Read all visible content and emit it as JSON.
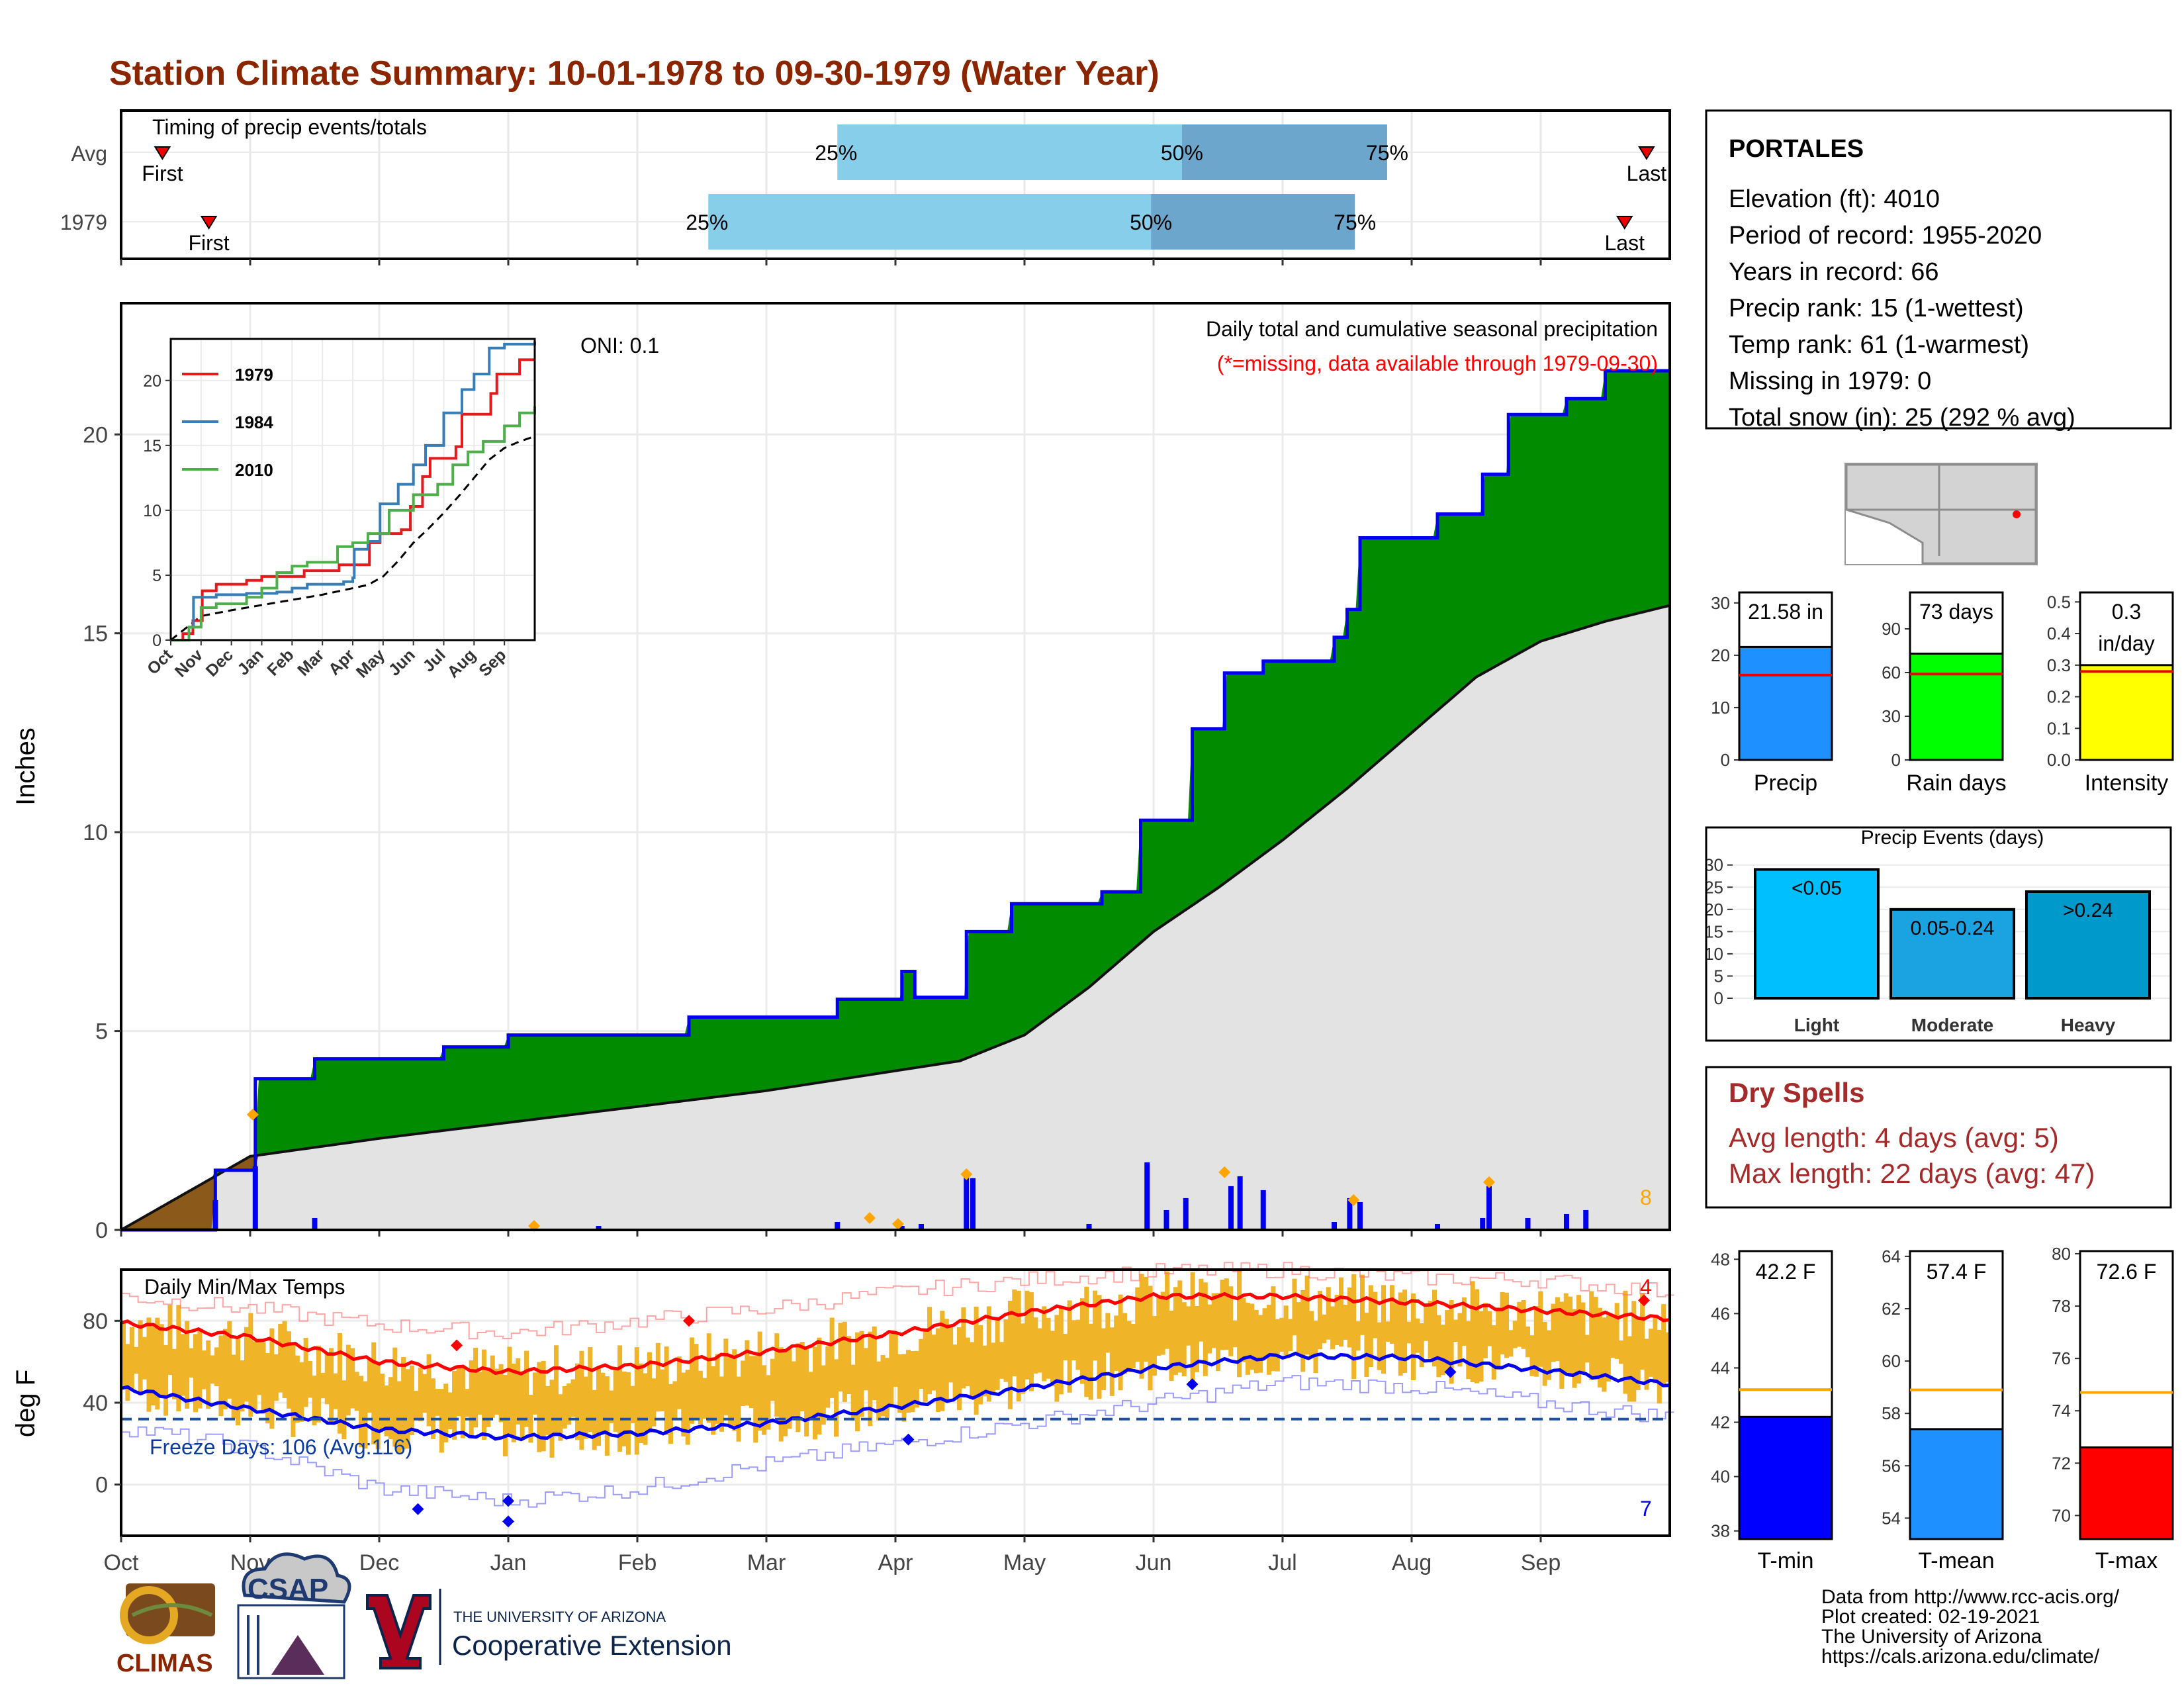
{
  "title": "Station Climate Summary: 10-01-1978 to 09-30-1979 (Water Year)",
  "colors": {
    "title": "#8B2500",
    "green": "#008B00",
    "blue": "#0000EE",
    "brown": "#8B5A1A",
    "grey_area": "#E3E3E3",
    "light_blue": "#87CEEB",
    "mid_blue": "#6CA6CD",
    "orange": "#FFA500",
    "red": "#FF0000",
    "gold": "#F0B429"
  },
  "timing": {
    "title": "Timing of precip events/totals",
    "rows": [
      {
        "label": "Avg",
        "first_label": "First",
        "last_label": "Last",
        "first_month": 0.32,
        "p25_month": 5.55,
        "p50_month": 8.22,
        "p75_month": 9.81,
        "last_month": 11.82,
        "p25_label": "25%",
        "p50_label": "50%",
        "p75_label": "75%"
      },
      {
        "label": "1979",
        "first_label": "First",
        "last_label": "Last",
        "first_month": 0.68,
        "p25_month": 4.55,
        "p50_month": 7.98,
        "p75_month": 9.56,
        "last_month": 11.65,
        "p25_label": "25%",
        "p50_label": "50%",
        "p75_label": "75%"
      }
    ]
  },
  "precip_chart": {
    "ylabel": "Inches",
    "y_ticks": [
      0,
      5,
      10,
      15,
      20
    ],
    "ylim": [
      0,
      23.3
    ],
    "x_ticks": [
      "Oct",
      "Nov",
      "Dec",
      "Jan",
      "Feb",
      "Mar",
      "Apr",
      "May",
      "Jun",
      "Jul",
      "Aug",
      "Sep"
    ],
    "oni": "ONI: 0.1",
    "subtitle": "Daily total and cumulative seasonal precipitation",
    "missing_note": "(*=missing, data available through 1979-09-30)",
    "count_label": "8",
    "cumulative_1979_steps": [
      [
        0,
        0
      ],
      [
        0.73,
        1.5
      ],
      [
        1.04,
        3.8
      ],
      [
        1.5,
        4.3
      ],
      [
        2.5,
        4.6
      ],
      [
        3.0,
        4.9
      ],
      [
        4.4,
        5.35
      ],
      [
        5.55,
        5.8
      ],
      [
        6.05,
        6.5
      ],
      [
        6.15,
        5.85
      ],
      [
        6.55,
        7.5
      ],
      [
        6.9,
        8.2
      ],
      [
        7.3,
        8.2
      ],
      [
        7.6,
        8.5
      ],
      [
        7.9,
        10.3
      ],
      [
        8.3,
        12.6
      ],
      [
        8.55,
        14.0
      ],
      [
        8.85,
        14.3
      ],
      [
        9.4,
        14.9
      ],
      [
        9.5,
        15.6
      ],
      [
        9.6,
        17.4
      ],
      [
        10.2,
        18.0
      ],
      [
        10.55,
        19.0
      ],
      [
        10.75,
        20.5
      ],
      [
        11.2,
        20.9
      ],
      [
        11.5,
        21.6
      ],
      [
        12,
        21.6
      ]
    ],
    "average_cumulative": [
      [
        0,
        0
      ],
      [
        1.0,
        1.85
      ],
      [
        2.0,
        2.3
      ],
      [
        3.0,
        2.7
      ],
      [
        4.0,
        3.1
      ],
      [
        5.0,
        3.5
      ],
      [
        6.0,
        4.0
      ],
      [
        6.5,
        4.25
      ],
      [
        7.0,
        4.9
      ],
      [
        7.5,
        6.1
      ],
      [
        8.0,
        7.5
      ],
      [
        8.5,
        8.6
      ],
      [
        9.0,
        9.8
      ],
      [
        9.5,
        11.1
      ],
      [
        10.0,
        12.5
      ],
      [
        10.5,
        13.9
      ],
      [
        11.0,
        14.8
      ],
      [
        11.5,
        15.3
      ],
      [
        12,
        15.7
      ]
    ],
    "daily_bars": [
      [
        0.73,
        0.75
      ],
      [
        1.04,
        1.6
      ],
      [
        1.5,
        0.3
      ],
      [
        3.7,
        0.1
      ],
      [
        5.55,
        0.2
      ],
      [
        6.05,
        0.1
      ],
      [
        6.2,
        0.15
      ],
      [
        6.55,
        1.4
      ],
      [
        6.6,
        1.3
      ],
      [
        7.5,
        0.15
      ],
      [
        7.95,
        1.7
      ],
      [
        8.1,
        0.5
      ],
      [
        8.25,
        0.8
      ],
      [
        8.6,
        1.1
      ],
      [
        8.67,
        1.35
      ],
      [
        8.85,
        1.0
      ],
      [
        9.4,
        0.2
      ],
      [
        9.52,
        0.8
      ],
      [
        9.6,
        0.7
      ],
      [
        10.2,
        0.15
      ],
      [
        10.55,
        0.3
      ],
      [
        10.6,
        1.1
      ],
      [
        10.9,
        0.3
      ],
      [
        11.2,
        0.4
      ],
      [
        11.35,
        0.5
      ]
    ],
    "markers": [
      [
        1.02,
        2.9
      ],
      [
        5.8,
        0.3
      ],
      [
        6.02,
        0.15
      ],
      [
        6.55,
        1.4
      ],
      [
        8.55,
        1.45
      ],
      [
        9.55,
        0.75
      ],
      [
        10.6,
        1.2
      ],
      [
        3.2,
        0.1
      ]
    ]
  },
  "inset": {
    "y_ticks": [
      0,
      5,
      10,
      15,
      20
    ],
    "x_ticks": [
      "Oct",
      "Nov",
      "Dec",
      "Jan",
      "Feb",
      "Mar",
      "Apr",
      "May",
      "Jun",
      "Jul",
      "Aug",
      "Sep"
    ],
    "series": [
      {
        "name": "1979",
        "color": "#E41A1C",
        "values": [
          [
            0,
            0
          ],
          [
            0.4,
            0.5
          ],
          [
            0.73,
            1.5
          ],
          [
            1.04,
            3.8
          ],
          [
            1.5,
            4.3
          ],
          [
            2.5,
            4.6
          ],
          [
            3.0,
            4.9
          ],
          [
            4.4,
            5.35
          ],
          [
            5.55,
            5.8
          ],
          [
            6.55,
            7.5
          ],
          [
            6.9,
            8.2
          ],
          [
            7.6,
            8.5
          ],
          [
            7.9,
            10.3
          ],
          [
            8.3,
            12.6
          ],
          [
            8.55,
            14.0
          ],
          [
            9.4,
            14.9
          ],
          [
            9.6,
            17.4
          ],
          [
            10.55,
            19.0
          ],
          [
            10.75,
            20.5
          ],
          [
            11.5,
            21.6
          ],
          [
            12,
            21.6
          ]
        ]
      },
      {
        "name": "1984",
        "color": "#377EB8",
        "values": [
          [
            0,
            0
          ],
          [
            0.6,
            1.0
          ],
          [
            0.75,
            3.3
          ],
          [
            1.5,
            3.5
          ],
          [
            2.5,
            3.6
          ],
          [
            3.5,
            3.7
          ],
          [
            4.0,
            4.0
          ],
          [
            4.5,
            4.3
          ],
          [
            5.7,
            4.5
          ],
          [
            6.0,
            4.8
          ],
          [
            6.05,
            7.0
          ],
          [
            6.5,
            7.6
          ],
          [
            6.9,
            10.5
          ],
          [
            7.5,
            12.0
          ],
          [
            8.0,
            13.5
          ],
          [
            8.4,
            15.0
          ],
          [
            9.0,
            17.5
          ],
          [
            9.6,
            19.3
          ],
          [
            10.0,
            20.5
          ],
          [
            10.5,
            22.5
          ],
          [
            11.0,
            22.8
          ],
          [
            12,
            23.0
          ]
        ]
      },
      {
        "name": "2010",
        "color": "#4DAF4A",
        "values": [
          [
            0,
            0
          ],
          [
            0.6,
            1.0
          ],
          [
            1.0,
            2.5
          ],
          [
            1.5,
            2.8
          ],
          [
            2.5,
            3.3
          ],
          [
            3.0,
            4.0
          ],
          [
            3.5,
            5.2
          ],
          [
            4.0,
            5.7
          ],
          [
            4.5,
            6.0
          ],
          [
            5.5,
            7.2
          ],
          [
            6.0,
            7.5
          ],
          [
            6.5,
            8.2
          ],
          [
            7.2,
            10.0
          ],
          [
            8.0,
            11.2
          ],
          [
            8.8,
            12.0
          ],
          [
            9.3,
            13.5
          ],
          [
            9.8,
            14.5
          ],
          [
            10.3,
            15.3
          ],
          [
            11.0,
            16.5
          ],
          [
            11.5,
            17.5
          ],
          [
            12,
            18.0
          ]
        ]
      }
    ],
    "average": [
      [
        0,
        0
      ],
      [
        1.0,
        1.85
      ],
      [
        2.0,
        2.3
      ],
      [
        3.0,
        2.7
      ],
      [
        4.0,
        3.1
      ],
      [
        5.0,
        3.5
      ],
      [
        6.0,
        4.0
      ],
      [
        6.5,
        4.25
      ],
      [
        7.0,
        4.9
      ],
      [
        7.5,
        6.1
      ],
      [
        8.0,
        7.5
      ],
      [
        8.5,
        8.6
      ],
      [
        9.0,
        9.8
      ],
      [
        9.5,
        11.1
      ],
      [
        10.0,
        12.5
      ],
      [
        10.5,
        13.9
      ],
      [
        11.0,
        14.8
      ],
      [
        11.5,
        15.3
      ],
      [
        12,
        15.7
      ]
    ]
  },
  "temp_chart": {
    "ylabel": "deg F",
    "title": "Daily Min/Max Temps",
    "y_ticks": [
      0,
      40,
      80
    ],
    "ylim": [
      -25,
      105
    ],
    "freeze_label": "Freeze Days: 106 (Avg:116)",
    "freeze_line_f": 32,
    "max_count_label": "4",
    "min_count_label": "7",
    "avg_max": [
      [
        0,
        79
      ],
      [
        1,
        72
      ],
      [
        2,
        60
      ],
      [
        3,
        55
      ],
      [
        4,
        58
      ],
      [
        5,
        65
      ],
      [
        6,
        74
      ],
      [
        7,
        84
      ],
      [
        8,
        92
      ],
      [
        9,
        92
      ],
      [
        10,
        89
      ],
      [
        11,
        85
      ],
      [
        12,
        81
      ]
    ],
    "avg_min": [
      [
        0,
        47
      ],
      [
        1,
        37
      ],
      [
        2,
        27
      ],
      [
        3,
        23
      ],
      [
        4,
        25
      ],
      [
        5,
        30
      ],
      [
        6,
        38
      ],
      [
        7,
        47
      ],
      [
        8,
        57
      ],
      [
        9,
        63
      ],
      [
        10,
        62
      ],
      [
        11,
        56
      ],
      [
        12,
        49
      ]
    ],
    "record_max": [
      [
        0,
        92
      ],
      [
        1,
        86
      ],
      [
        2,
        78
      ],
      [
        3,
        74
      ],
      [
        4,
        80
      ],
      [
        5,
        86
      ],
      [
        6,
        94
      ],
      [
        7,
        100
      ],
      [
        8,
        104
      ],
      [
        9,
        105
      ],
      [
        10,
        101
      ],
      [
        11,
        100
      ],
      [
        12,
        94
      ]
    ],
    "record_min": [
      [
        0,
        28
      ],
      [
        1,
        18
      ],
      [
        2,
        -2
      ],
      [
        3,
        -8
      ],
      [
        4,
        -2
      ],
      [
        5,
        10
      ],
      [
        6,
        20
      ],
      [
        7,
        30
      ],
      [
        8,
        40
      ],
      [
        9,
        50
      ],
      [
        10,
        48
      ],
      [
        11,
        40
      ],
      [
        12,
        33
      ]
    ],
    "red_markers": [
      [
        2.6,
        68
      ],
      [
        4.4,
        80
      ],
      [
        11.8,
        90
      ]
    ],
    "blue_markers": [
      [
        2.3,
        -12
      ],
      [
        3.0,
        -8
      ],
      [
        3.0,
        -18
      ],
      [
        6.1,
        22
      ],
      [
        8.3,
        49
      ],
      [
        10.3,
        55
      ]
    ]
  },
  "station": {
    "name": "PORTALES",
    "lines": [
      "Elevation (ft): 4010",
      "Period of record: 1955-2020",
      "Years in record: 66",
      "Precip rank: 15 (1-wettest)",
      "Temp rank: 61 (1-warmest)",
      "Missing in 1979: 0",
      "Total snow (in): 25 (292 % avg)"
    ]
  },
  "summary_bars": [
    {
      "label": "Precip",
      "value_label": "21.58 in",
      "value": 21.58,
      "avg": 16.2,
      "ymax": 32,
      "ticks": [
        0,
        10,
        20,
        30
      ],
      "color": "#1E90FF"
    },
    {
      "label": "Rain days",
      "value_label": "73 days",
      "value": 73,
      "avg": 59,
      "ymax": 115,
      "ticks": [
        0,
        30,
        60,
        90
      ],
      "color": "#00FF00"
    },
    {
      "label": "Intensity",
      "value_label": "0.3",
      "value_label2": "in/day",
      "value": 0.3,
      "avg": 0.28,
      "ymax": 0.53,
      "ticks": [
        "0.0",
        "0.1",
        "0.2",
        "0.3",
        "0.4",
        "0.5"
      ],
      "color": "#FFFF00"
    }
  ],
  "events": {
    "title": "Precip Events (days)",
    "y_ticks": [
      0,
      5,
      10,
      15,
      20,
      25,
      30
    ],
    "ymax": 31,
    "bars": [
      {
        "category": "Light",
        "label": "<0.05",
        "value": 29,
        "color": "#00BFFF"
      },
      {
        "category": "Moderate",
        "label": "0.05-0.24",
        "value": 20,
        "color": "#1AA3E0"
      },
      {
        "category": "Heavy",
        "label": ">0.24",
        "value": 24,
        "color": "#0099CC"
      }
    ]
  },
  "dry_spells": {
    "title": "Dry Spells",
    "avg_line": "Avg length: 4 days (avg: 5)",
    "max_line": "Max length: 22 days (avg: 47)"
  },
  "temp_bars": [
    {
      "label": "T-min",
      "value_label": "42.2 F",
      "value": 42.2,
      "avg": 43.2,
      "ymin": 37.7,
      "ymax": 48.3,
      "ticks": [
        38,
        40,
        42,
        44,
        46,
        48
      ],
      "color": "#0000FF"
    },
    {
      "label": "T-mean",
      "value_label": "57.4 F",
      "value": 57.4,
      "avg": 58.9,
      "ymin": 53.2,
      "ymax": 64.2,
      "ticks": [
        54,
        56,
        58,
        60,
        62,
        64
      ],
      "color": "#1E90FF"
    },
    {
      "label": "T-max",
      "value_label": "72.6 F",
      "value": 72.6,
      "avg": 74.7,
      "ymin": 69.1,
      "ymax": 80.1,
      "ticks": [
        70,
        72,
        74,
        76,
        78,
        80
      ],
      "color": "#FF0000"
    }
  ],
  "credits": [
    "Data from http://www.rcc-acis.org/",
    "Plot created: 02-19-2021",
    "The University of Arizona",
    "https://cals.arizona.edu/climate/"
  ],
  "logos": {
    "climas": "CLIMAS",
    "csap": "CSAP",
    "ua_small": "THE UNIVERSITY OF ARIZONA",
    "ua_big": "Cooperative Extension"
  }
}
